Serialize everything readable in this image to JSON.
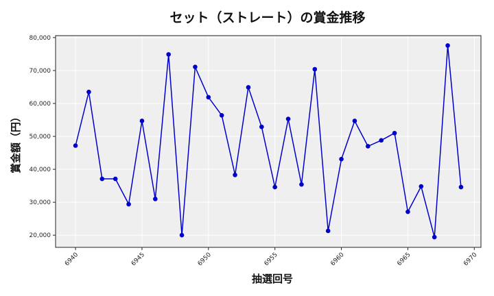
{
  "chart_data": {
    "type": "line",
    "title": "セット（ストレート）の賞金推移",
    "xlabel": "抽選回号",
    "ylabel": "賞金額（円）",
    "x": [
      6940,
      6941,
      6942,
      6943,
      6944,
      6945,
      6946,
      6947,
      6948,
      6949,
      6950,
      6951,
      6952,
      6953,
      6954,
      6955,
      6956,
      6957,
      6958,
      6959,
      6960,
      6961,
      6962,
      6963,
      6964,
      6965,
      6966,
      6967,
      6968,
      6969
    ],
    "series": [
      {
        "name": "賞金額",
        "color": "#0000cc",
        "values": [
          47200,
          63500,
          37100,
          37100,
          29400,
          54700,
          31000,
          74900,
          20000,
          71100,
          61900,
          56400,
          38300,
          64900,
          52900,
          34600,
          55300,
          35400,
          70400,
          21300,
          43100,
          54700,
          47000,
          48800,
          51000,
          27100,
          34800,
          19400,
          77600,
          34600
        ]
      }
    ],
    "xlim": [
      6938.5,
      6970.5
    ],
    "ylim": [
      16300,
      80600
    ],
    "xticks": [
      6940,
      6945,
      6950,
      6955,
      6960,
      6965,
      6970
    ],
    "xtick_labels": [
      "6940",
      "6945",
      "6950",
      "6955",
      "6960",
      "6965",
      "6970"
    ],
    "yticks": [
      20000,
      30000,
      40000,
      50000,
      60000,
      70000,
      80000
    ],
    "ytick_labels": [
      "20,000",
      "30,000",
      "40,000",
      "50,000",
      "60,000",
      "70,000",
      "80,000"
    ],
    "grid": true,
    "background": "#efefef",
    "marker": "circle"
  }
}
